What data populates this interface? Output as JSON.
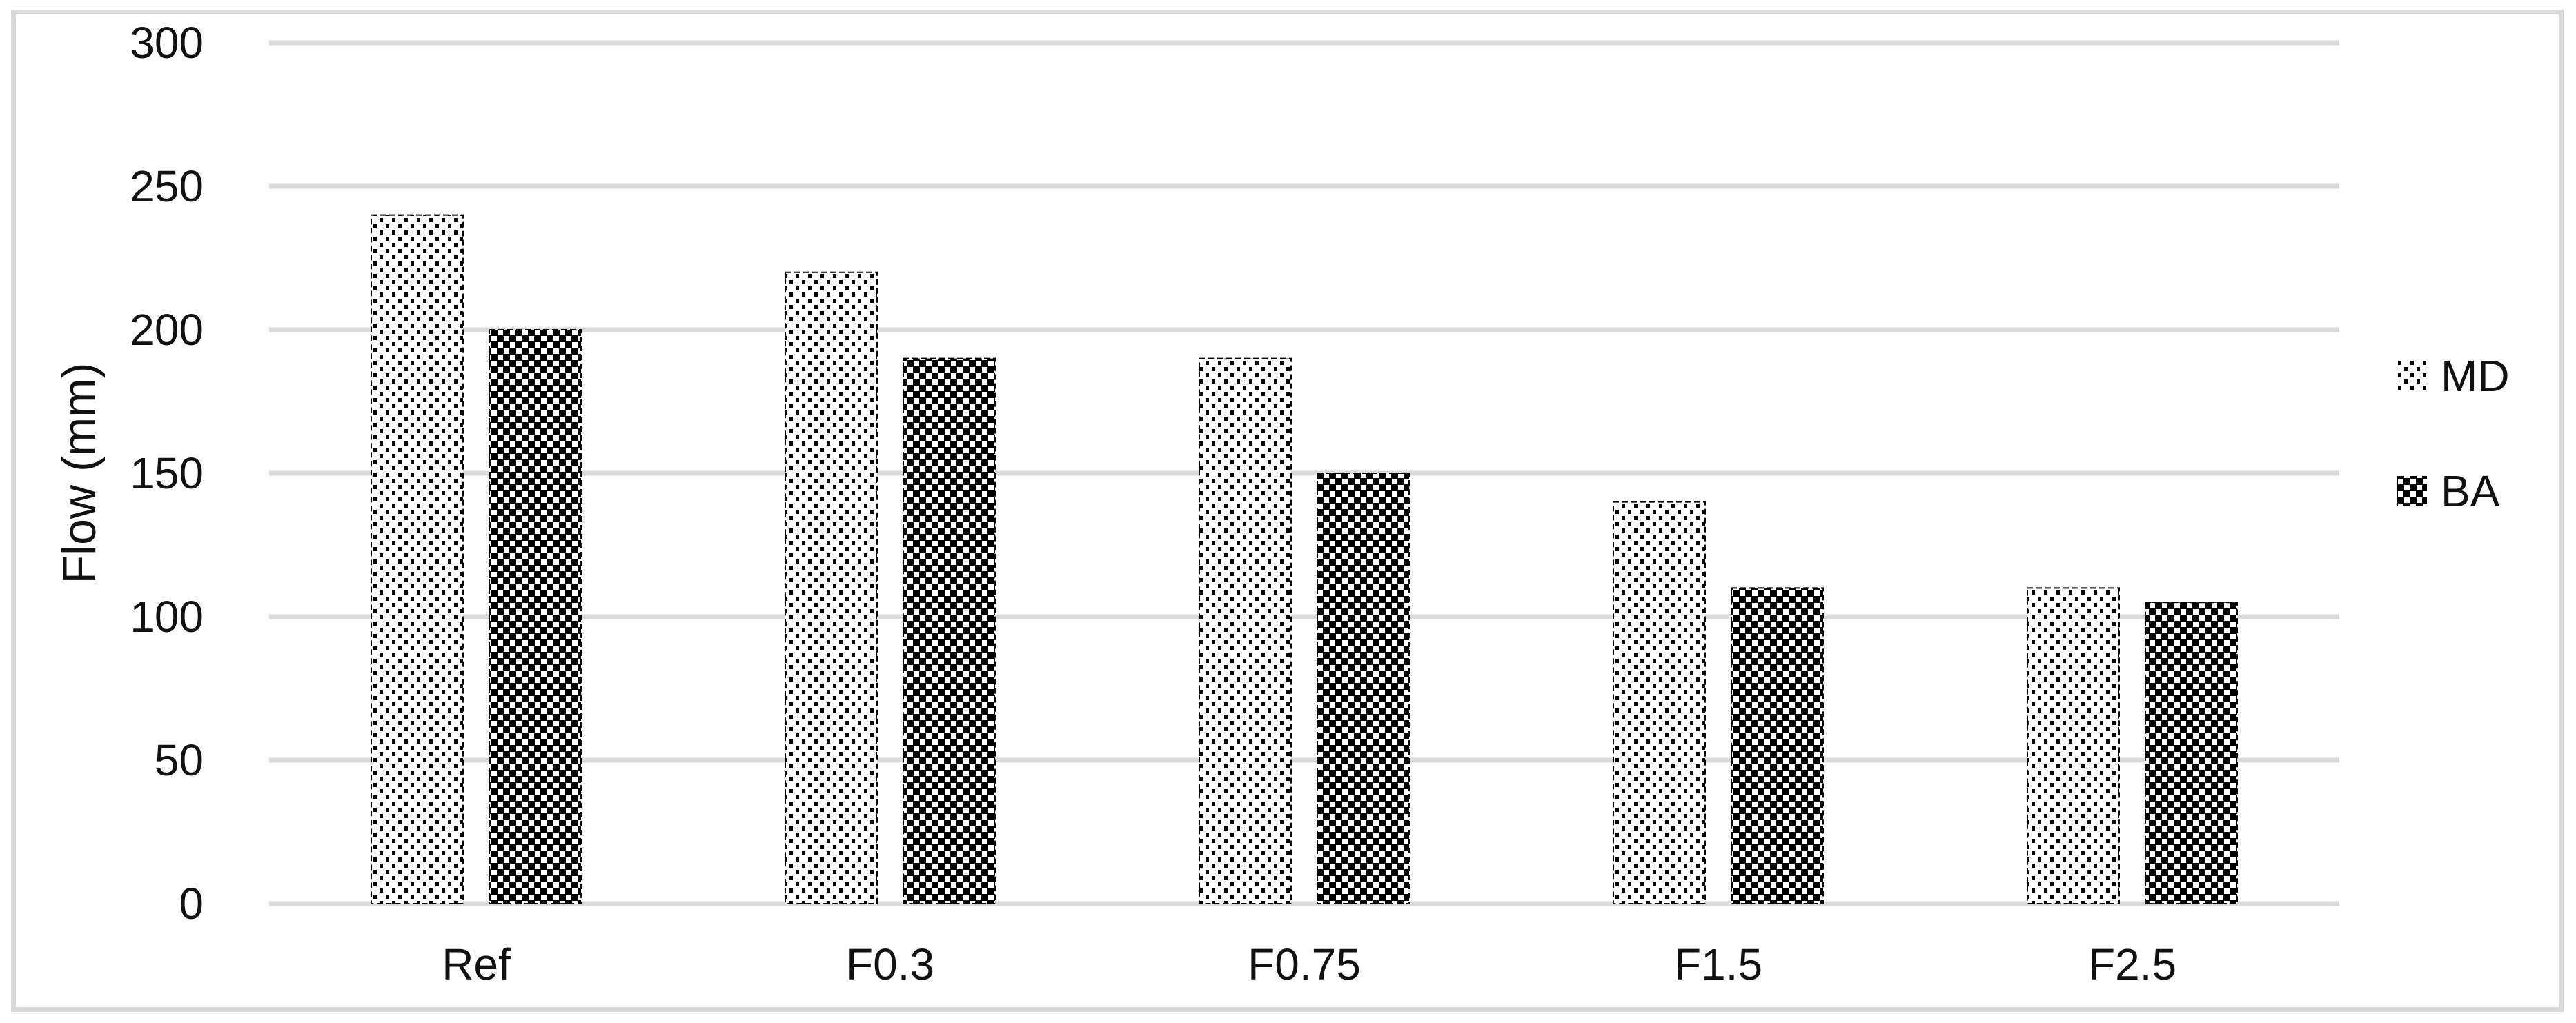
{
  "chart_data": {
    "type": "bar",
    "title": "",
    "categories": [
      "Ref",
      "F0.3",
      "F0.75",
      "F1.5",
      "F2.5"
    ],
    "series": [
      {
        "name": "MD",
        "pattern": "dotted",
        "values": [
          240,
          220,
          190,
          140,
          110
        ]
      },
      {
        "name": "BA",
        "pattern": "checker",
        "values": [
          200,
          190,
          150,
          110,
          105
        ]
      }
    ],
    "xlabel": "",
    "ylabel": "Flow (mm)",
    "ylim": [
      0,
      300
    ],
    "yticks": [
      300,
      250,
      200,
      150,
      100,
      50,
      0
    ],
    "grid": "horizontal-only",
    "legend_position": "right-middle",
    "legend": [
      "MD",
      "BA"
    ],
    "colors": {
      "gridline": "#d9d9d9",
      "frame": "#d9d9d9",
      "pattern_foreground": "#000000",
      "bar_background": "#ffffff",
      "text": "#111111",
      "background": "#ffffff"
    }
  }
}
